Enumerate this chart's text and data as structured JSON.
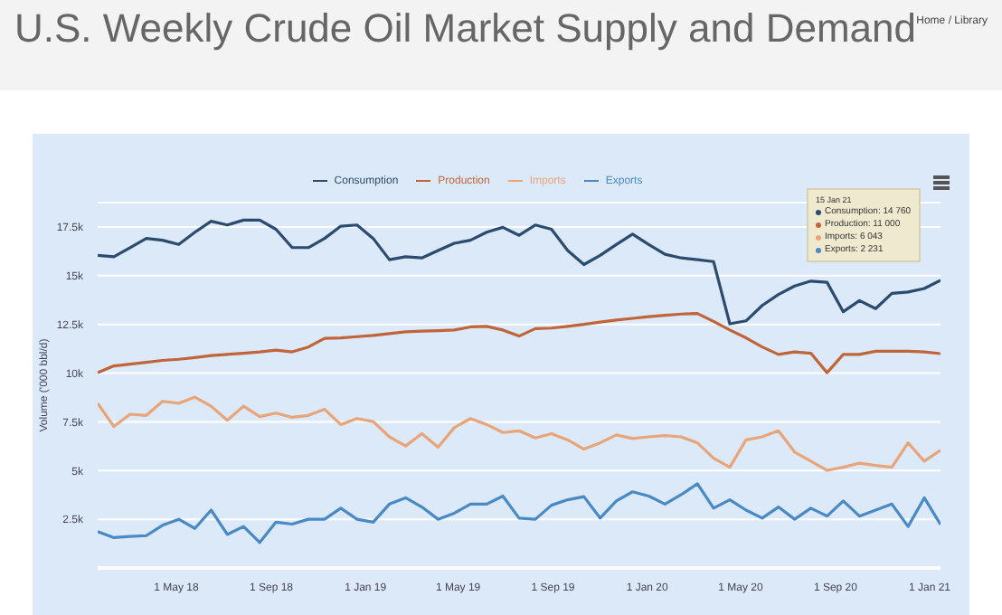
{
  "chart_data": {
    "type": "line",
    "title": "U.S. Weekly Crude Oil Market Supply and Demand",
    "ylabel": "Volume ('000 bbl/d)",
    "annotations": [
      "Home / Library",
      "15 Jan 21",
      "Consumption: 14 760",
      "Production: 11 000",
      "Imports: 6 043",
      "Exports: 2 231"
    ],
    "x": [
      "2018-01-19",
      "2018-02-09",
      "2018-03-02",
      "2018-03-23",
      "2018-04-13",
      "2018-05-04",
      "2018-05-25",
      "2018-06-15",
      "2018-07-06",
      "2018-07-27",
      "2018-08-17",
      "2018-09-07",
      "2018-09-28",
      "2018-10-19",
      "2018-11-09",
      "2018-11-30",
      "2018-12-21",
      "2019-01-11",
      "2019-02-01",
      "2019-02-22",
      "2019-03-15",
      "2019-04-05",
      "2019-04-26",
      "2019-05-17",
      "2019-06-07",
      "2019-06-28",
      "2019-07-19",
      "2019-08-09",
      "2019-08-30",
      "2019-09-20",
      "2019-10-11",
      "2019-11-01",
      "2019-11-22",
      "2019-12-13",
      "2020-01-03",
      "2020-01-24",
      "2020-02-14",
      "2020-03-06",
      "2020-03-27",
      "2020-04-17",
      "2020-05-08",
      "2020-05-29",
      "2020-06-19",
      "2020-07-10",
      "2020-07-31",
      "2020-08-21",
      "2020-09-11",
      "2020-10-02",
      "2020-10-23",
      "2020-11-13",
      "2020-12-04",
      "2020-12-25",
      "2021-01-15"
    ],
    "series": [
      {
        "name": "Consumption",
        "color": "#2b4c6f",
        "values": [
          16040,
          15970,
          16440,
          16910,
          16820,
          16600,
          17230,
          17790,
          17600,
          17850,
          17850,
          17380,
          16440,
          16440,
          16910,
          17540,
          17600,
          16910,
          15820,
          15970,
          15910,
          16290,
          16660,
          16820,
          17230,
          17480,
          17070,
          17600,
          17380,
          16290,
          15570,
          16040,
          16600,
          17130,
          16600,
          16100,
          15910,
          15820,
          15720,
          12530,
          12680,
          13470,
          14030,
          14470,
          14720,
          14660,
          13150,
          13720,
          13310,
          14090,
          14160,
          14340,
          14760
        ]
      },
      {
        "name": "Production",
        "color": "#c0643a",
        "values": [
          10020,
          10370,
          10460,
          10550,
          10650,
          10710,
          10800,
          10900,
          10960,
          11020,
          11090,
          11180,
          11090,
          11340,
          11780,
          11810,
          11870,
          11930,
          12030,
          12120,
          12150,
          12180,
          12210,
          12370,
          12400,
          12210,
          11900,
          12280,
          12310,
          12400,
          12500,
          12620,
          12720,
          12810,
          12900,
          12970,
          13030,
          13060,
          12650,
          12210,
          11810,
          11340,
          10960,
          11090,
          11020,
          10020,
          10960,
          10960,
          11120,
          11120,
          11120,
          11090,
          11000
        ]
      },
      {
        "name": "Imports",
        "color": "#e8a57a",
        "values": [
          8450,
          7260,
          7890,
          7830,
          8550,
          8450,
          8770,
          8300,
          7580,
          8300,
          7770,
          7950,
          7730,
          7830,
          8140,
          7360,
          7670,
          7510,
          6730,
          6260,
          6890,
          6200,
          7200,
          7670,
          7360,
          6950,
          7040,
          6670,
          6890,
          6570,
          6100,
          6420,
          6830,
          6640,
          6730,
          6790,
          6730,
          6420,
          5630,
          5170,
          6570,
          6730,
          7040,
          5950,
          5480,
          5010,
          5170,
          5380,
          5260,
          5170,
          6420,
          5480,
          6043
        ]
      },
      {
        "name": "Exports",
        "color": "#4a8ac4",
        "values": [
          1870,
          1560,
          1620,
          1660,
          2190,
          2500,
          2030,
          2970,
          1720,
          2130,
          1310,
          2350,
          2250,
          2500,
          2500,
          3070,
          2500,
          2350,
          3280,
          3600,
          3130,
          2500,
          2810,
          3280,
          3280,
          3690,
          2560,
          2500,
          3220,
          3500,
          3660,
          2560,
          3440,
          3910,
          3690,
          3280,
          3760,
          4320,
          3070,
          3500,
          2970,
          2560,
          3130,
          2500,
          3070,
          2660,
          3440,
          2660,
          2970,
          3280,
          2130,
          3600,
          2231
        ]
      }
    ],
    "xlim": [
      "2018-01-19",
      "2021-01-15"
    ],
    "xticks": [
      {
        "value": "2018-05-01",
        "label": "1 May 18"
      },
      {
        "value": "2018-09-01",
        "label": "1 Sep 18"
      },
      {
        "value": "2019-01-01",
        "label": "1 Jan 19"
      },
      {
        "value": "2019-05-01",
        "label": "1 May 19"
      },
      {
        "value": "2019-09-01",
        "label": "1 Sep 19"
      },
      {
        "value": "2020-01-01",
        "label": "1 Jan 20"
      },
      {
        "value": "2020-05-01",
        "label": "1 May 20"
      },
      {
        "value": "2020-09-01",
        "label": "1 Sep 20"
      },
      {
        "value": "2021-01-01",
        "label": "1 Jan 21"
      }
    ],
    "ylim": [
      0,
      18750
    ],
    "yticks": [
      {
        "value": 0,
        "label": null
      },
      {
        "value": 2500,
        "label": "2.5k"
      },
      {
        "value": 5000,
        "label": "5k"
      },
      {
        "value": 7500,
        "label": "7.5k"
      },
      {
        "value": 10000,
        "label": "10k"
      },
      {
        "value": 12500,
        "label": "12.5k"
      },
      {
        "value": 15000,
        "label": "15k"
      },
      {
        "value": 17500,
        "label": "17.5k"
      }
    ],
    "grid": "y",
    "legend": "top",
    "marker": "none",
    "line_style": "solid"
  }
}
